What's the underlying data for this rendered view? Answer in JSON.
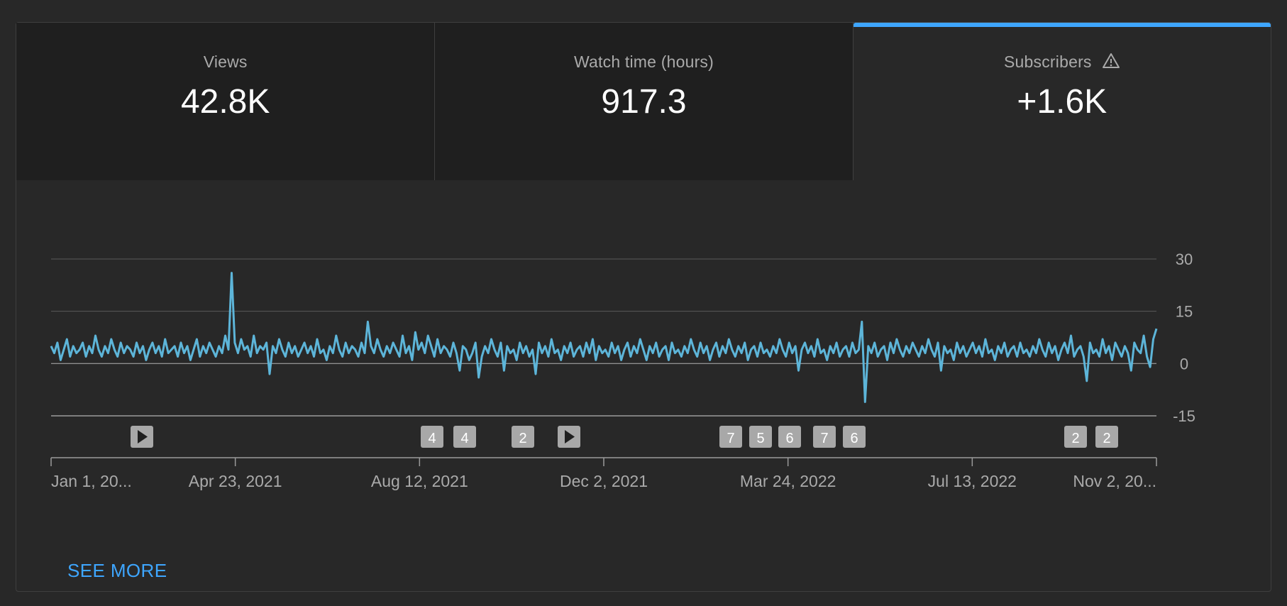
{
  "tabs": [
    {
      "title": "Views",
      "value": "42.8K",
      "active": false
    },
    {
      "title": "Watch time (hours)",
      "value": "917.3",
      "active": false
    },
    {
      "title": "Subscribers",
      "value": "+1.6K",
      "active": true,
      "icon": "warning-icon"
    }
  ],
  "see_more_label": "SEE MORE",
  "colors": {
    "line": "#5db5d9",
    "accent": "#3ea6ff",
    "marker_bg": "#a8a8a8",
    "grid": "#5a5a5a"
  },
  "chart_data": {
    "type": "line",
    "y_ticks": [
      30,
      15,
      0,
      -15
    ],
    "ylim": [
      -15,
      30
    ],
    "x_tick_labels": [
      "Jan 1, 20...",
      "Apr 23, 2021",
      "Aug 12, 2021",
      "Dec 2, 2021",
      "Mar 24, 2022",
      "Jul 13, 2022",
      "Nov 2, 20..."
    ],
    "x_range": [
      "2021-01-01",
      "2022-11-02"
    ],
    "grid": true,
    "series": [
      {
        "values": [
          5,
          3,
          6,
          1,
          4,
          7,
          2,
          5,
          3,
          4,
          6,
          2,
          5,
          3,
          8,
          4,
          2,
          5,
          3,
          7,
          4,
          2,
          6,
          3,
          5,
          4,
          2,
          6,
          3,
          5,
          1,
          4,
          6,
          3,
          5,
          2,
          7,
          3,
          4,
          5,
          2,
          6,
          3,
          5,
          1,
          4,
          7,
          2,
          5,
          3,
          6,
          4,
          2,
          5,
          3,
          8,
          4,
          26,
          6,
          3,
          7,
          4,
          5,
          2,
          8,
          3,
          5,
          4,
          6,
          -3,
          5,
          3,
          7,
          4,
          2,
          6,
          3,
          5,
          2,
          4,
          6,
          3,
          5,
          2,
          7,
          3,
          4,
          1,
          5,
          3,
          8,
          4,
          2,
          6,
          3,
          5,
          4,
          2,
          6,
          3,
          12,
          5,
          3,
          7,
          4,
          2,
          5,
          3,
          6,
          4,
          2,
          8,
          3,
          5,
          1,
          9,
          4,
          6,
          3,
          8,
          5,
          2,
          7,
          3,
          5,
          4,
          2,
          6,
          3,
          -2,
          5,
          4,
          1,
          3,
          6,
          -4,
          2,
          5,
          3,
          7,
          4,
          2,
          6,
          -2,
          5,
          3,
          4,
          1,
          6,
          3,
          5,
          2,
          4,
          -3,
          6,
          3,
          5,
          2,
          7,
          3,
          4,
          1,
          5,
          3,
          6,
          2,
          4,
          5,
          2,
          6,
          3,
          7,
          1,
          5,
          3,
          4,
          2,
          6,
          3,
          5,
          1,
          4,
          6,
          2,
          5,
          3,
          7,
          4,
          1,
          5,
          3,
          6,
          2,
          4,
          5,
          1,
          6,
          3,
          4,
          2,
          5,
          3,
          7,
          4,
          2,
          6,
          3,
          5,
          1,
          4,
          6,
          2,
          5,
          3,
          7,
          4,
          2,
          5,
          3,
          6,
          1,
          4,
          5,
          2,
          6,
          3,
          4,
          2,
          5,
          3,
          7,
          4,
          2,
          6,
          3,
          5,
          -2,
          4,
          6,
          3,
          5,
          2,
          7,
          3,
          4,
          1,
          5,
          3,
          6,
          2,
          4,
          5,
          2,
          6,
          3,
          4,
          12,
          -11,
          5,
          3,
          6,
          2,
          4,
          5,
          1,
          6,
          3,
          7,
          4,
          2,
          5,
          3,
          6,
          4,
          2,
          5,
          3,
          7,
          4,
          2,
          6,
          -2,
          5,
          3,
          4,
          1,
          6,
          3,
          5,
          2,
          4,
          6,
          3,
          5,
          2,
          7,
          3,
          4,
          1,
          5,
          3,
          6,
          2,
          4,
          5,
          2,
          6,
          3,
          4,
          2,
          5,
          3,
          7,
          4,
          2,
          6,
          3,
          5,
          1,
          4,
          6,
          3,
          8,
          2,
          4,
          5,
          2,
          -5,
          6,
          3,
          4,
          2,
          7,
          3,
          5,
          1,
          6,
          4,
          2,
          5,
          3,
          -2,
          6,
          4,
          3,
          8,
          2,
          -1,
          7,
          10
        ]
      }
    ],
    "markers": [
      {
        "kind": "play",
        "label": ""
      },
      {
        "kind": "count",
        "label": "4"
      },
      {
        "kind": "count",
        "label": "4"
      },
      {
        "kind": "count",
        "label": "2"
      },
      {
        "kind": "play",
        "label": ""
      },
      {
        "kind": "count",
        "label": "7"
      },
      {
        "kind": "count",
        "label": "5"
      },
      {
        "kind": "count",
        "label": "6"
      },
      {
        "kind": "count",
        "label": "7"
      },
      {
        "kind": "count",
        "label": "6"
      },
      {
        "kind": "count",
        "label": "2"
      },
      {
        "kind": "count",
        "label": "2"
      }
    ]
  }
}
